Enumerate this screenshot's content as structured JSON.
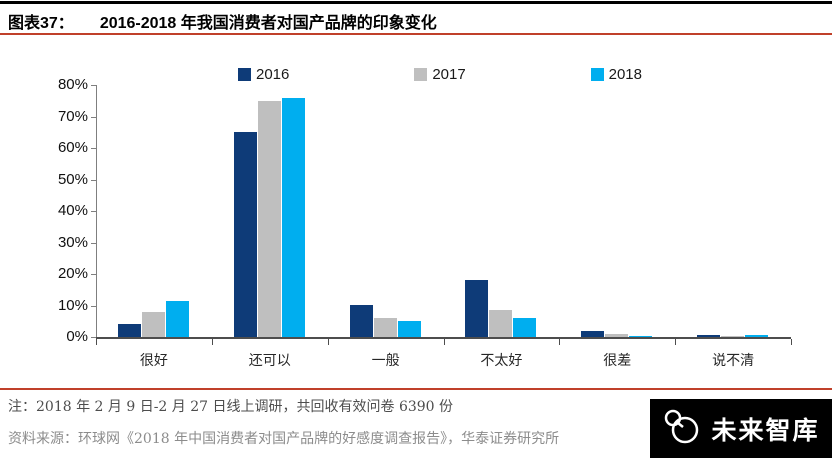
{
  "header": {
    "label": "图表37：",
    "title": "2016-2018 年我国消费者对国产品牌的印象变化"
  },
  "chart_data": {
    "type": "bar",
    "title": "2016-2018 年我国消费者对国产品牌的印象变化",
    "categories": [
      "很好",
      "还可以",
      "一般",
      "不太好",
      "很差",
      "说不清"
    ],
    "series": [
      {
        "name": "2016",
        "color": "#0e3b78",
        "values": [
          4,
          65,
          10,
          18,
          2,
          0.6
        ]
      },
      {
        "name": "2017",
        "color": "#bfbfbf",
        "values": [
          8,
          75,
          6,
          8.5,
          1,
          0.2
        ]
      },
      {
        "name": "2018",
        "color": "#00aeef",
        "values": [
          11.5,
          76,
          5,
          6,
          0.4,
          0.6
        ]
      }
    ],
    "y_ticks": [
      "80%",
      "70%",
      "60%",
      "50%",
      "40%",
      "30%",
      "20%",
      "10%",
      "0%"
    ],
    "ylim": [
      0,
      80
    ],
    "xlabel": "",
    "ylabel": "",
    "legend_position": "top",
    "grid": false
  },
  "footer": {
    "note": "注：2018 年 2 月 9 日-2 月 27 日线上调研，共回收有效问卷 6390 份",
    "source": "资料来源：环球网《2018 年中国消费者对国产品牌的好感度调查报告》，华泰证券研究所"
  },
  "logo": {
    "text": "未来智库"
  },
  "colors": {
    "accent_red": "#c0402a",
    "axis": "#4d4d4d",
    "bar_2016": "#0e3b78",
    "bar_2017": "#bfbfbf",
    "bar_2018": "#00aeef"
  }
}
